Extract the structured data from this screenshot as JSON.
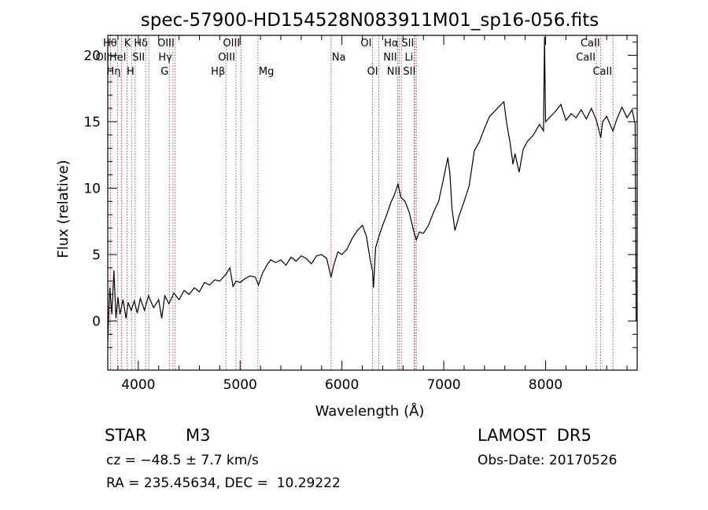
{
  "chart_data": {
    "type": "line",
    "title": "spec-57900-HD154528N083911M01_sp16-056.fits",
    "xlabel": "Wavelength (Å)",
    "ylabel": "Flux (relative)",
    "xlim": [
      3700,
      8900
    ],
    "ylim": [
      -3.7,
      21.5
    ],
    "x_ticks": [
      4000,
      5000,
      6000,
      7000,
      8000
    ],
    "y_ticks": [
      0,
      5,
      10,
      15,
      20
    ],
    "grid": false,
    "series": [
      {
        "values_xy": [
          [
            3700,
            -1.5
          ],
          [
            3720,
            2.5
          ],
          [
            3740,
            0.5
          ],
          [
            3760,
            3.8
          ],
          [
            3780,
            0.2
          ],
          [
            3800,
            1.8
          ],
          [
            3820,
            0.5
          ],
          [
            3850,
            1.6
          ],
          [
            3880,
            0.2
          ],
          [
            3900,
            1.4
          ],
          [
            3930,
            0.8
          ],
          [
            3960,
            1.5
          ],
          [
            3990,
            0.6
          ],
          [
            4020,
            1.7
          ],
          [
            4060,
            0.8
          ],
          [
            4100,
            1.9
          ],
          [
            4150,
            1.0
          ],
          [
            4200,
            1.6
          ],
          [
            4230,
            0.2
          ],
          [
            4260,
            1.9
          ],
          [
            4300,
            1.3
          ],
          [
            4350,
            2.1
          ],
          [
            4400,
            1.6
          ],
          [
            4450,
            2.3
          ],
          [
            4500,
            2.0
          ],
          [
            4550,
            2.5
          ],
          [
            4600,
            2.2
          ],
          [
            4650,
            2.9
          ],
          [
            4700,
            2.7
          ],
          [
            4750,
            3.1
          ],
          [
            4800,
            3.0
          ],
          [
            4860,
            3.5
          ],
          [
            4900,
            4.0
          ],
          [
            4930,
            2.6
          ],
          [
            4960,
            3.0
          ],
          [
            5000,
            2.9
          ],
          [
            5050,
            3.2
          ],
          [
            5100,
            3.4
          ],
          [
            5150,
            3.3
          ],
          [
            5180,
            2.7
          ],
          [
            5220,
            3.6
          ],
          [
            5270,
            4.3
          ],
          [
            5300,
            4.6
          ],
          [
            5350,
            4.4
          ],
          [
            5400,
            4.6
          ],
          [
            5450,
            4.2
          ],
          [
            5500,
            4.8
          ],
          [
            5550,
            4.5
          ],
          [
            5600,
            4.9
          ],
          [
            5650,
            4.7
          ],
          [
            5700,
            4.3
          ],
          [
            5750,
            4.9
          ],
          [
            5800,
            5.0
          ],
          [
            5850,
            4.7
          ],
          [
            5893,
            3.3
          ],
          [
            5920,
            4.2
          ],
          [
            5960,
            5.2
          ],
          [
            6000,
            5.0
          ],
          [
            6050,
            5.4
          ],
          [
            6100,
            6.2
          ],
          [
            6150,
            6.8
          ],
          [
            6200,
            7.2
          ],
          [
            6240,
            6.4
          ],
          [
            6280,
            4.5
          ],
          [
            6300,
            3.8
          ],
          [
            6310,
            2.5
          ],
          [
            6330,
            5.5
          ],
          [
            6360,
            6.3
          ],
          [
            6400,
            7.2
          ],
          [
            6440,
            8.0
          ],
          [
            6480,
            8.9
          ],
          [
            6520,
            9.6
          ],
          [
            6550,
            10.3
          ],
          [
            6580,
            9.3
          ],
          [
            6620,
            9.0
          ],
          [
            6660,
            8.2
          ],
          [
            6700,
            6.9
          ],
          [
            6730,
            6.1
          ],
          [
            6760,
            6.7
          ],
          [
            6800,
            6.6
          ],
          [
            6850,
            7.2
          ],
          [
            6900,
            8.2
          ],
          [
            6950,
            9.0
          ],
          [
            7000,
            10.8
          ],
          [
            7040,
            12.3
          ],
          [
            7060,
            11.1
          ],
          [
            7080,
            8.5
          ],
          [
            7110,
            6.8
          ],
          [
            7150,
            7.9
          ],
          [
            7200,
            9.0
          ],
          [
            7250,
            10.2
          ],
          [
            7300,
            12.8
          ],
          [
            7350,
            13.5
          ],
          [
            7400,
            14.5
          ],
          [
            7450,
            15.4
          ],
          [
            7500,
            15.8
          ],
          [
            7550,
            16.2
          ],
          [
            7590,
            16.5
          ],
          [
            7620,
            14.8
          ],
          [
            7650,
            13.5
          ],
          [
            7680,
            11.8
          ],
          [
            7700,
            12.6
          ],
          [
            7740,
            11.2
          ],
          [
            7780,
            12.9
          ],
          [
            7820,
            13.5
          ],
          [
            7880,
            14.0
          ],
          [
            7940,
            14.8
          ],
          [
            7980,
            14.3
          ],
          [
            7990,
            21.4
          ],
          [
            8000,
            15.0
          ],
          [
            8050,
            15.4
          ],
          [
            8100,
            15.8
          ],
          [
            8150,
            16.3
          ],
          [
            8200,
            15.1
          ],
          [
            8250,
            15.6
          ],
          [
            8300,
            15.3
          ],
          [
            8350,
            15.9
          ],
          [
            8400,
            15.2
          ],
          [
            8450,
            16.0
          ],
          [
            8500,
            15.1
          ],
          [
            8542,
            13.8
          ],
          [
            8560,
            15.0
          ],
          [
            8600,
            15.4
          ],
          [
            8662,
            14.3
          ],
          [
            8700,
            15.2
          ],
          [
            8750,
            16.1
          ],
          [
            8800,
            15.3
          ],
          [
            8850,
            15.9
          ],
          [
            8880,
            14.8
          ],
          [
            8890,
            0.0
          ]
        ]
      }
    ],
    "lines": [
      {
        "label": "OII",
        "x": 3727,
        "row": 1,
        "anchor": "right"
      },
      {
        "label": "Hθ",
        "x": 3798,
        "row": 0,
        "anchor": "right"
      },
      {
        "label": "Hη",
        "x": 3835,
        "row": 2,
        "anchor": "right"
      },
      {
        "label": "K",
        "x": 3934,
        "row": 0,
        "anchor": "right"
      },
      {
        "label": "HeI",
        "x": 3889,
        "row": 1,
        "anchor": "right"
      },
      {
        "label": "H",
        "x": 3969,
        "row": 2,
        "anchor": "right"
      },
      {
        "label": "Hδ",
        "x": 4102,
        "row": 0,
        "anchor": "right"
      },
      {
        "label": "SII",
        "x": 4072,
        "row": 1,
        "anchor": "right"
      },
      {
        "label": "OIII",
        "x": 4363,
        "row": 0,
        "anchor": "right"
      },
      {
        "label": "Hγ",
        "x": 4340,
        "row": 1,
        "anchor": "right"
      },
      {
        "label": "G",
        "x": 4305,
        "row": 2,
        "anchor": "right"
      },
      {
        "label": "Hβ",
        "x": 4861,
        "row": 2,
        "anchor": "right"
      },
      {
        "label": "OIII",
        "x": 5007,
        "row": 0,
        "anchor": "right"
      },
      {
        "label": "OIII",
        "x": 4959,
        "row": 1,
        "anchor": "right"
      },
      {
        "label": "Mg",
        "x": 5175,
        "row": 2,
        "anchor": "left"
      },
      {
        "label": "Na",
        "x": 5893,
        "row": 1,
        "anchor": "left"
      },
      {
        "label": "OI",
        "x": 6300,
        "row": 0,
        "anchor": "right"
      },
      {
        "label": "OI",
        "x": 6363,
        "row": 2,
        "anchor": "right"
      },
      {
        "label": "Hα",
        "x": 6563,
        "row": 0,
        "anchor": "right"
      },
      {
        "label": "NII",
        "x": 6548,
        "row": 1,
        "anchor": "right"
      },
      {
        "label": "NII",
        "x": 6583,
        "row": 2,
        "anchor": "right"
      },
      {
        "label": "SII",
        "x": 6716,
        "row": 0,
        "anchor": "right"
      },
      {
        "label": "Li",
        "x": 6708,
        "row": 1,
        "anchor": "right"
      },
      {
        "label": "SII",
        "x": 6731,
        "row": 2,
        "anchor": "right"
      },
      {
        "label": "CaII",
        "x": 8498,
        "row": 1,
        "anchor": "right"
      },
      {
        "label": "CaII",
        "x": 8542,
        "row": 0,
        "anchor": "right"
      },
      {
        "label": "CaII",
        "x": 8662,
        "row": 2,
        "anchor": "right"
      }
    ]
  },
  "info": {
    "object_class": "STAR",
    "subclass": "M3",
    "survey": "LAMOST  DR5",
    "redshift_line": "cz = −48.5 ± 7.7 km/s",
    "obs_date": "Obs-Date: 20170526",
    "coords": "RA = 235.45634, DEC =  10.29222"
  },
  "colors": {
    "axis": "#000000",
    "spectrum": "#000000",
    "line_markers": "#b22222"
  }
}
